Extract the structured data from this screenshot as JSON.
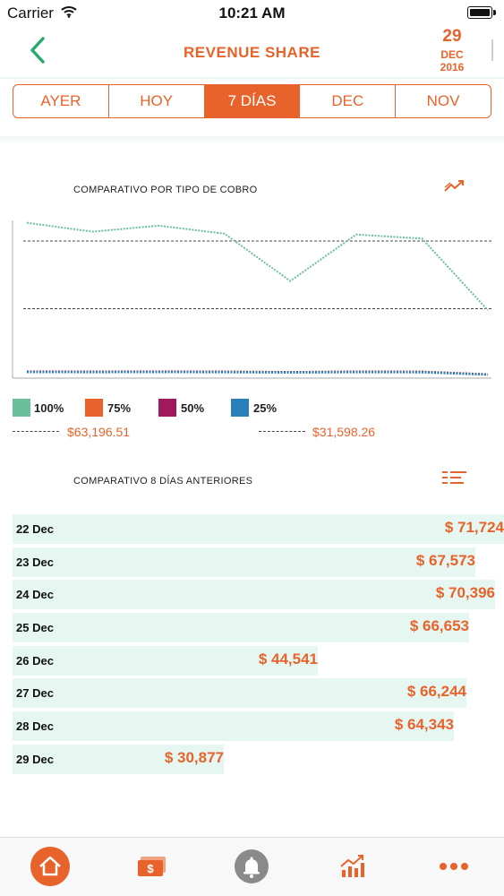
{
  "status_bar": {
    "carrier": "Carrier",
    "time": "10:21 AM"
  },
  "header": {
    "title": "REVENUE SHARE",
    "date_day": "29",
    "date_month": "DEC",
    "date_year": "2016"
  },
  "tabs": [
    {
      "label": "AYER",
      "active": false
    },
    {
      "label": "HOY",
      "active": false
    },
    {
      "label": "7 DÍAS",
      "active": true
    },
    {
      "label": "DEC",
      "active": false
    },
    {
      "label": "NOV",
      "active": false
    }
  ],
  "chart_section": {
    "title": "COMPARATIVO POR TIPO DE COBRO",
    "icon": "trend-chart-icon"
  },
  "chart_data": {
    "type": "line",
    "x": [
      1,
      2,
      3,
      4,
      5,
      6,
      7,
      8
    ],
    "series": [
      {
        "name": "100%",
        "color": "#6cbf9b",
        "values": [
          71724,
          67573,
          70396,
          66653,
          44541,
          66244,
          64343,
          30877
        ]
      },
      {
        "name": "75%",
        "color": "#e8632b",
        "values": [
          2200,
          2150,
          2200,
          2120,
          1950,
          2150,
          2100,
          900
        ]
      },
      {
        "name": "50%",
        "color": "#a0195c",
        "values": [
          2200,
          2150,
          2200,
          2120,
          1950,
          2150,
          2100,
          900
        ]
      },
      {
        "name": "25%",
        "color": "#2a7fba",
        "values": [
          2000,
          1950,
          2000,
          1930,
          1780,
          1950,
          1900,
          800
        ]
      }
    ],
    "reference_lines": [
      {
        "label": "$63,196.51",
        "value": 63196.51
      },
      {
        "label": "$31,598.26",
        "value": 31598.26
      }
    ],
    "ylim": [
      0,
      72000
    ]
  },
  "legend": [
    {
      "label": "100%",
      "color": "#6cbf9b"
    },
    {
      "label": "75%",
      "color": "#e8632b"
    },
    {
      "label": "50%",
      "color": "#a0195c"
    },
    {
      "label": "25%",
      "color": "#2a7fba"
    }
  ],
  "references": [
    {
      "label": "$63,196.51"
    },
    {
      "label": "$31,598.26"
    }
  ],
  "list_section": {
    "title": "COMPARATIVO 8 DÍAS ANTERIORES",
    "icon": "list-sort-icon"
  },
  "days": [
    {
      "label": "22 Dec",
      "value_label": "$ 71,724",
      "value": 71724
    },
    {
      "label": "23 Dec",
      "value_label": "$ 67,573",
      "value": 67573
    },
    {
      "label": "24 Dec",
      "value_label": "$ 70,396",
      "value": 70396
    },
    {
      "label": "25 Dec",
      "value_label": "$ 66,653",
      "value": 66653
    },
    {
      "label": "26 Dec",
      "value_label": "$ 44,541",
      "value": 44541
    },
    {
      "label": "27 Dec",
      "value_label": "$ 66,244",
      "value": 66244
    },
    {
      "label": "28 Dec",
      "value_label": "$ 64,343",
      "value": 64343
    },
    {
      "label": "29 Dec",
      "value_label": "$ 30,877",
      "value": 30877
    }
  ],
  "tab_bar": [
    {
      "icon": "home-icon",
      "active": true
    },
    {
      "icon": "money-icon",
      "active": false
    },
    {
      "icon": "bell-icon",
      "active": false
    },
    {
      "icon": "growth-chart-icon",
      "active": false
    },
    {
      "icon": "more-dots-icon",
      "active": false
    }
  ],
  "colors": {
    "accent": "#e8632b",
    "bar_bg": "#e6f7f2"
  }
}
